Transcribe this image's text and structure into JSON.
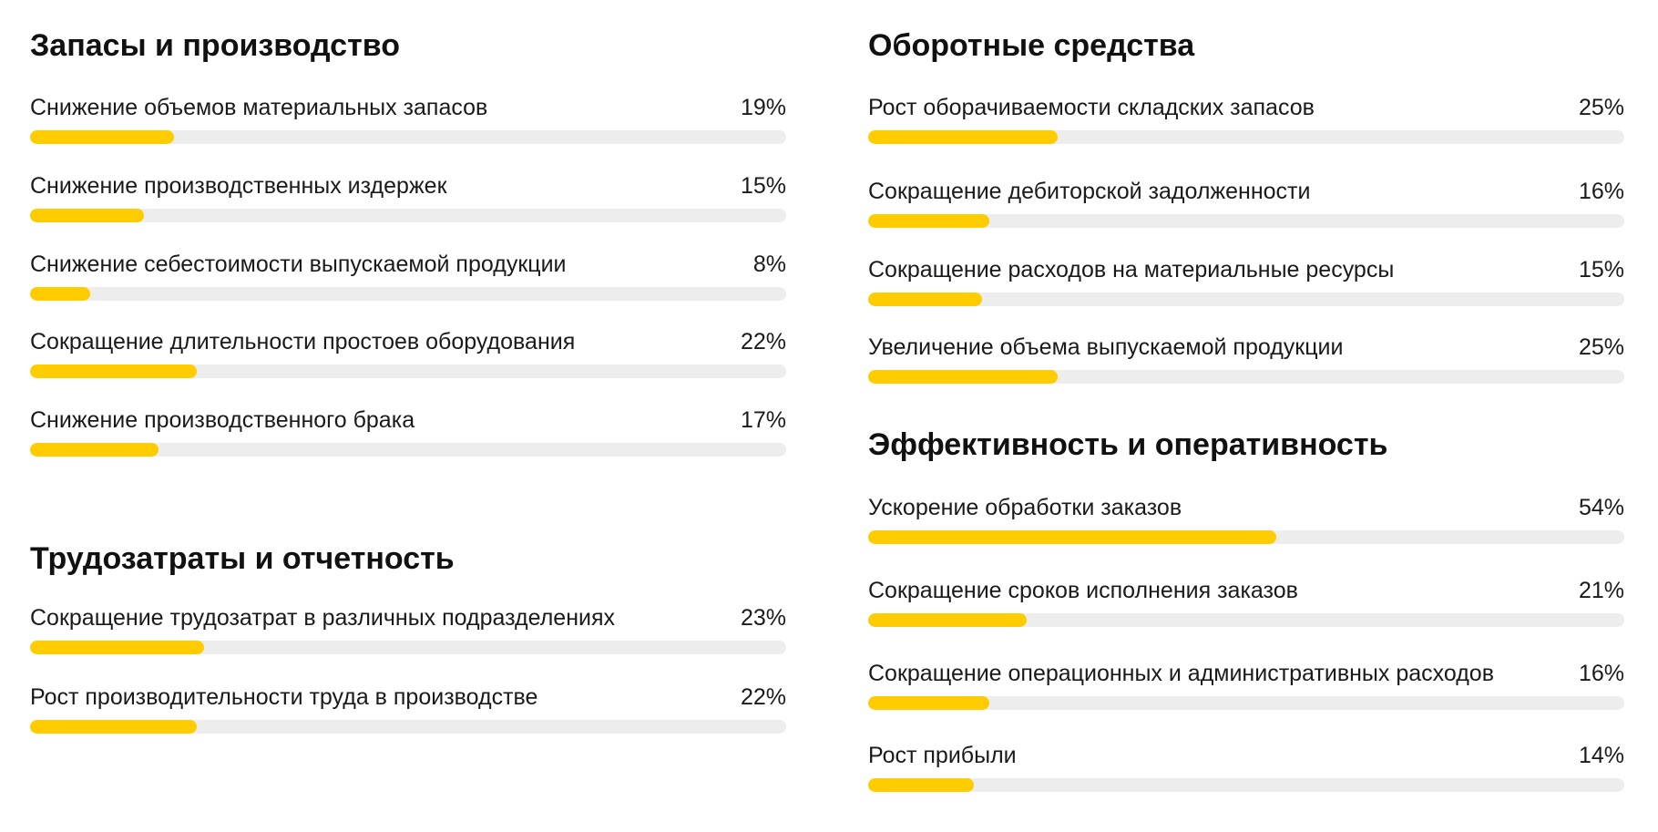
{
  "colors": {
    "bar_fill": "#FFCC00",
    "bar_track": "#EDEDED",
    "text": "#111111"
  },
  "chart_data": [
    {
      "type": "bar",
      "orientation": "horizontal",
      "title": "Запасы и производство",
      "categories": [
        "Снижение объемов материальных запасов",
        "Снижение производственных издержек",
        "Снижение себестоимости выпускаемой продукции",
        "Сокращение длительности простоев оборудования",
        "Снижение производственного брака"
      ],
      "values": [
        19,
        15,
        8,
        22,
        17
      ],
      "value_labels": [
        "19%",
        "15%",
        "8%",
        "22%",
        "17%"
      ],
      "unit": "%",
      "xlim": [
        0,
        100
      ]
    },
    {
      "type": "bar",
      "orientation": "horizontal",
      "title": "Трудозатраты и отчетность",
      "categories": [
        "Сокращение трудозатрат в различных подразделениях",
        "Рост производительности труда в производстве"
      ],
      "values": [
        23,
        22
      ],
      "value_labels": [
        "23%",
        "22%"
      ],
      "unit": "%",
      "xlim": [
        0,
        100
      ]
    },
    {
      "type": "bar",
      "orientation": "horizontal",
      "title": "Оборотные средства",
      "categories": [
        "Рост оборачиваемости складских запасов",
        "Сокращение дебиторской задолженности",
        "Сокращение расходов на материальные ресурсы",
        "Увеличение объема выпускаемой продукции"
      ],
      "values": [
        25,
        16,
        15,
        25
      ],
      "value_labels": [
        "25%",
        "16%",
        "15%",
        "25%"
      ],
      "unit": "%",
      "xlim": [
        0,
        100
      ]
    },
    {
      "type": "bar",
      "orientation": "horizontal",
      "title": "Эффективность и оперативность",
      "categories": [
        "Ускорение обработки заказов",
        "Сокращение сроков исполнения заказов",
        "Сокращение операционных и административных расходов",
        "Рост прибыли"
      ],
      "values": [
        54,
        21,
        16,
        14
      ],
      "value_labels": [
        "54%",
        "21%",
        "16%",
        "14%"
      ],
      "unit": "%",
      "xlim": [
        0,
        100
      ]
    }
  ]
}
